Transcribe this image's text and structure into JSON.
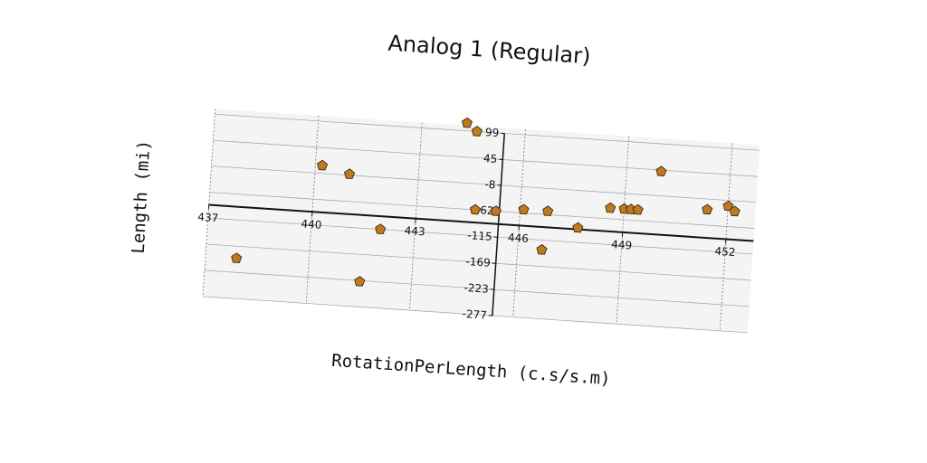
{
  "chart_data": {
    "type": "scatter",
    "title": "Analog 1 (Regular)",
    "xlabel": "RotationPerLength (c.s/s.m)",
    "ylabel": "Length (mi)",
    "xlim": [
      437,
      452.8
    ],
    "ylim": [
      -277,
      110
    ],
    "xticks": [
      437,
      440,
      443,
      446,
      449,
      452
    ],
    "yticks": [
      99,
      45,
      -8,
      -62,
      -115,
      -169,
      -223,
      -277
    ],
    "grid": true,
    "marker": "pentagon",
    "marker_color": "#c07a1e",
    "points": [
      {
        "x": 437.9,
        "y": -194
      },
      {
        "x": 440.2,
        "y": 8
      },
      {
        "x": 441.0,
        "y": -6
      },
      {
        "x": 441.5,
        "y": -225
      },
      {
        "x": 442.0,
        "y": -115
      },
      {
        "x": 444.3,
        "y": 115
      },
      {
        "x": 444.6,
        "y": 99
      },
      {
        "x": 444.7,
        "y": -62
      },
      {
        "x": 445.3,
        "y": -62
      },
      {
        "x": 446.1,
        "y": -55
      },
      {
        "x": 446.8,
        "y": -55
      },
      {
        "x": 446.7,
        "y": -135
      },
      {
        "x": 447.7,
        "y": -85
      },
      {
        "x": 448.6,
        "y": -40
      },
      {
        "x": 449.0,
        "y": -40
      },
      {
        "x": 449.2,
        "y": -40
      },
      {
        "x": 449.4,
        "y": -40
      },
      {
        "x": 450.0,
        "y": 42
      },
      {
        "x": 451.4,
        "y": -30
      },
      {
        "x": 452.0,
        "y": -20
      },
      {
        "x": 452.2,
        "y": -30
      }
    ]
  }
}
